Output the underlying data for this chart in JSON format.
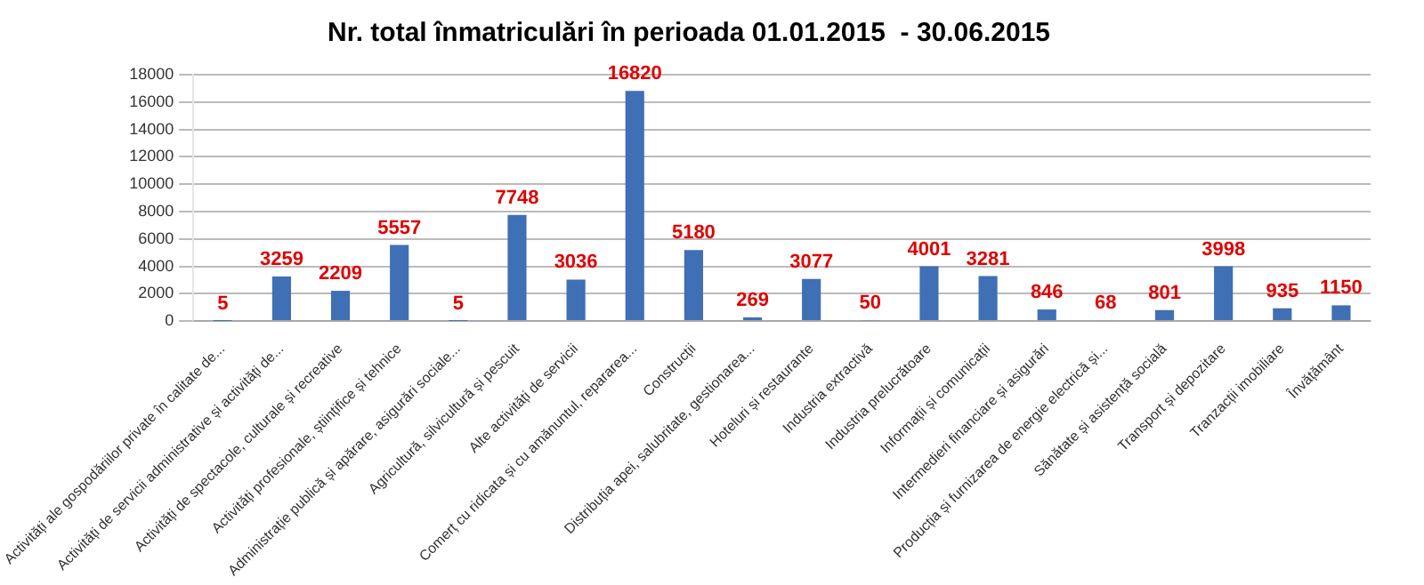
{
  "chart_data": {
    "type": "bar",
    "title": "Nr. total înmatriculări în perioada 01.01.2015  - 30.06.2015",
    "categories": [
      "Activități ale gospodăriilor private în calitate de...",
      "Activități de servicii administrative și activități de...",
      "Activități de spectacole, culturale și recreative",
      "Activități profesionale, științifice și tehnice",
      "Administrație publică și apărare, asigurări sociale...",
      "Agricultură, silvicultură și pescuit",
      "Alte activități de servicii",
      "Comerț cu ridicata și cu amănuntul, repararea...",
      "Construcții",
      "Distribuția apei, salubritate, gestionarea...",
      "Hoteluri și restaurante",
      "Industria extractivă",
      "Industria prelucrătoare",
      "Informații și comunicații",
      "Intermedieri financiare și asigurări",
      "Producția și furnizarea de energie electrică și...",
      "Sănătate și asistență socială",
      "Transport și depozitare",
      "Tranzacții imobiliare",
      "Învățământ"
    ],
    "values": [
      5,
      3259,
      2209,
      5557,
      5,
      7748,
      3036,
      16820,
      5180,
      269,
      3077,
      50,
      4001,
      3281,
      846,
      68,
      801,
      3998,
      935,
      1150
    ],
    "color": "#3f6fb5",
    "ylim": [
      0,
      18000
    ],
    "yticks": [
      0,
      2000,
      4000,
      6000,
      8000,
      10000,
      12000,
      14000,
      16000,
      18000
    ],
    "grid": "y",
    "data_labels": true
  }
}
